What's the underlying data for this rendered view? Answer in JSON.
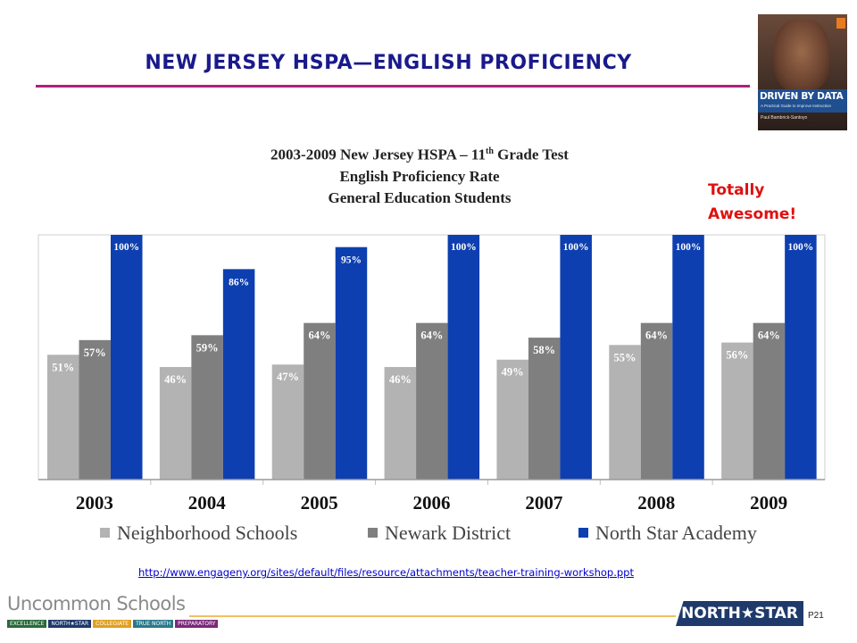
{
  "slide": {
    "title": "NEW JERSEY HSPA—ENGLISH PROFICIENCY",
    "callout": [
      "Totally",
      "Awesome!"
    ],
    "link": "http://www.engageny.org/sites/default/files/resource/attachments/teacher-training-workshop.ppt",
    "page_number": "P21",
    "book": {
      "title": "DRIVEN BY DATA",
      "subtitle": "A Practical Guide to Improve Instruction",
      "author": "Paul Bambrick-Santoyo"
    },
    "footer": {
      "org": "Uncommon Schools",
      "strip": [
        "EXCELLENCE",
        "NORTH★STAR",
        "COLLEGIATE",
        "TRUE NORTH",
        "PREPARATORY"
      ],
      "badge": "NORTH★STAR"
    }
  },
  "colors": {
    "neighborhood": "#b3b3b3",
    "newark": "#7f7f7f",
    "northstar": "#0d3fb0",
    "title": "#1a1a8c",
    "rule": "#b0207a",
    "callout": "#e01010"
  },
  "chart_data": {
    "type": "bar",
    "title": [
      "2003-2009 New Jersey HSPA – 11th Grade Test",
      "English Proficiency Rate",
      "General Education Students"
    ],
    "categories": [
      "2003",
      "2004",
      "2005",
      "2006",
      "2007",
      "2008",
      "2009"
    ],
    "series": [
      {
        "name": "Neighborhood Schools",
        "values": [
          51,
          46,
          47,
          46,
          49,
          55,
          56
        ]
      },
      {
        "name": "Newark District",
        "values": [
          57,
          59,
          64,
          64,
          58,
          64,
          64
        ]
      },
      {
        "name": "North Star Academy",
        "values": [
          100,
          86,
          95,
          100,
          100,
          100,
          100
        ]
      }
    ],
    "value_suffix": "%",
    "ylim": [
      0,
      100
    ],
    "grid": false,
    "legend": "bottom"
  }
}
